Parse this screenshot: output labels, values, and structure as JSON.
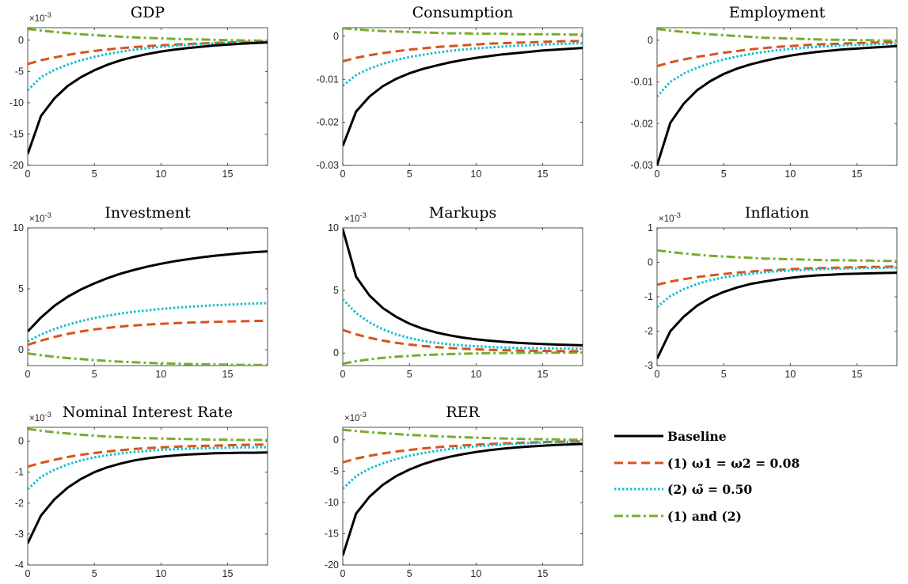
{
  "chart_data": {
    "type": "line",
    "x": [
      0,
      1,
      2,
      3,
      4,
      5,
      6,
      7,
      8,
      9,
      10,
      11,
      12,
      13,
      14,
      15,
      16,
      17,
      18
    ],
    "xlim": [
      0,
      18
    ],
    "xticks": [
      "0",
      "5",
      "10",
      "15"
    ],
    "grid": false,
    "legend": {
      "placement": "bottom-right",
      "entries": [
        {
          "key": "baseline",
          "label": "Baseline",
          "color": "#000000",
          "style": "solid"
        },
        {
          "key": "s1",
          "label": "(1) ω1 = ω2 = 0.08",
          "color": "#d95319",
          "style": "dashed"
        },
        {
          "key": "s2",
          "label": "(2) ω̃ = 0.50",
          "color": "#17becf",
          "style": "dotted"
        },
        {
          "key": "s3",
          "label": "(1) and (2)",
          "color": "#77ac30",
          "style": "dashdot"
        }
      ]
    },
    "panels": [
      {
        "title": "GDP",
        "exponent": "×10^-3",
        "ylim": [
          -20,
          2
        ],
        "yticks": [
          "-20",
          "-15",
          "-10",
          "-5",
          "0"
        ],
        "ytick_values": [
          -20,
          -15,
          -10,
          -5,
          0
        ],
        "series": [
          {
            "key": "baseline",
            "values": [
              -18.2,
              -12.1,
              -9.3,
              -7.3,
              -5.9,
              -4.8,
              -3.9,
              -3.2,
              -2.65,
              -2.2,
              -1.8,
              -1.5,
              -1.25,
              -1.05,
              -0.85,
              -0.7,
              -0.55,
              -0.45,
              -0.35
            ]
          },
          {
            "key": "s1",
            "values": [
              -3.8,
              -3.2,
              -2.75,
              -2.35,
              -2.0,
              -1.72,
              -1.48,
              -1.28,
              -1.1,
              -0.95,
              -0.82,
              -0.7,
              -0.6,
              -0.52,
              -0.44,
              -0.37,
              -0.31,
              -0.26,
              -0.22
            ]
          },
          {
            "key": "s2",
            "values": [
              -8.0,
              -5.9,
              -4.75,
              -3.9,
              -3.2,
              -2.65,
              -2.2,
              -1.83,
              -1.52,
              -1.27,
              -1.06,
              -0.88,
              -0.73,
              -0.61,
              -0.51,
              -0.43,
              -0.36,
              -0.3,
              -0.25
            ]
          },
          {
            "key": "s3",
            "values": [
              1.8,
              1.55,
              1.33,
              1.13,
              0.96,
              0.81,
              0.68,
              0.56,
              0.46,
              0.37,
              0.29,
              0.22,
              0.16,
              0.11,
              0.06,
              0.02,
              -0.02,
              -0.06,
              -0.1
            ]
          }
        ]
      },
      {
        "title": "Consumption",
        "exponent": "",
        "ylim": [
          -0.03,
          0.002
        ],
        "yticks": [
          "-0.03",
          "-0.02",
          "-0.01",
          "0"
        ],
        "ytick_values": [
          -0.03,
          -0.02,
          -0.01,
          0
        ],
        "series": [
          {
            "key": "baseline",
            "values": [
              -0.0255,
              -0.0175,
              -0.014,
              -0.0116,
              -0.0099,
              -0.0086,
              -0.0076,
              -0.0068,
              -0.0061,
              -0.0055,
              -0.005,
              -0.0046,
              -0.0042,
              -0.0039,
              -0.0036,
              -0.0033,
              -0.0031,
              -0.0029,
              -0.0027
            ]
          },
          {
            "key": "s1",
            "values": [
              -0.0058,
              -0.005,
              -0.0044,
              -0.0039,
              -0.0035,
              -0.0031,
              -0.0028,
              -0.0025,
              -0.0023,
              -0.0021,
              -0.0019,
              -0.0017,
              -0.0016,
              -0.0015,
              -0.0014,
              -0.0013,
              -0.0012,
              -0.0011,
              -0.0011
            ]
          },
          {
            "key": "s2",
            "values": [
              -0.0115,
              -0.009,
              -0.0075,
              -0.0064,
              -0.0055,
              -0.0048,
              -0.0043,
              -0.0038,
              -0.0034,
              -0.0031,
              -0.0028,
              -0.0026,
              -0.0024,
              -0.0022,
              -0.0021,
              -0.0019,
              -0.0018,
              -0.0017,
              -0.0016
            ]
          },
          {
            "key": "s3",
            "values": [
              0.0019,
              0.0016,
              0.0014,
              0.0012,
              0.0011,
              0.001,
              0.0009,
              0.0008,
              0.0007,
              0.0007,
              0.0006,
              0.0006,
              0.0006,
              0.0005,
              0.0005,
              0.0005,
              0.0005,
              0.0004,
              0.0004
            ]
          }
        ]
      },
      {
        "title": "Employment",
        "exponent": "",
        "ylim": [
          -0.03,
          0.003
        ],
        "yticks": [
          "-0.03",
          "-0.02",
          "-0.01",
          "0"
        ],
        "ytick_values": [
          -0.03,
          -0.02,
          -0.01,
          0
        ],
        "series": [
          {
            "key": "baseline",
            "values": [
              -0.03,
              -0.0198,
              -0.0152,
              -0.012,
              -0.0098,
              -0.0081,
              -0.0068,
              -0.0058,
              -0.005,
              -0.0043,
              -0.0037,
              -0.0032,
              -0.0028,
              -0.0025,
              -0.0022,
              -0.002,
              -0.0018,
              -0.0016,
              -0.0014
            ]
          },
          {
            "key": "s1",
            "values": [
              -0.0062,
              -0.0053,
              -0.0046,
              -0.004,
              -0.0035,
              -0.003,
              -0.0026,
              -0.0022,
              -0.0019,
              -0.0016,
              -0.0014,
              -0.0012,
              -0.001,
              -0.0009,
              -0.0008,
              -0.0007,
              -0.0006,
              -0.0005,
              -0.0005
            ]
          },
          {
            "key": "s2",
            "values": [
              -0.0135,
              -0.01,
              -0.008,
              -0.0066,
              -0.0055,
              -0.0046,
              -0.0039,
              -0.0033,
              -0.0028,
              -0.0024,
              -0.0021,
              -0.0018,
              -0.0016,
              -0.0014,
              -0.0012,
              -0.0011,
              -0.001,
              -0.0009,
              -0.0008
            ]
          },
          {
            "key": "s3",
            "values": [
              0.0027,
              0.0023,
              0.002,
              0.0017,
              0.0014,
              0.0012,
              0.001,
              0.0008,
              0.0006,
              0.0005,
              0.0004,
              0.0003,
              0.0002,
              0.0001,
              0.0001,
              0.0,
              0.0,
              -0.0001,
              -0.0001
            ]
          }
        ]
      },
      {
        "title": "Investment",
        "exponent": "×10^-3",
        "ylim": [
          -1.3,
          10
        ],
        "yticks": [
          "0",
          "5",
          "10"
        ],
        "ytick_values": [
          0,
          5,
          10
        ],
        "series": [
          {
            "key": "baseline",
            "values": [
              1.5,
              2.65,
              3.6,
              4.35,
              4.95,
              5.45,
              5.88,
              6.25,
              6.56,
              6.83,
              7.06,
              7.26,
              7.43,
              7.58,
              7.71,
              7.82,
              7.92,
              8.01,
              8.08
            ]
          },
          {
            "key": "s1",
            "values": [
              0.4,
              0.75,
              1.05,
              1.3,
              1.5,
              1.67,
              1.8,
              1.91,
              2.0,
              2.07,
              2.13,
              2.18,
              2.22,
              2.26,
              2.29,
              2.32,
              2.34,
              2.36,
              2.38
            ]
          },
          {
            "key": "s2",
            "values": [
              0.7,
              1.25,
              1.7,
              2.05,
              2.35,
              2.6,
              2.8,
              2.97,
              3.12,
              3.24,
              3.35,
              3.44,
              3.52,
              3.59,
              3.65,
              3.7,
              3.75,
              3.79,
              3.83
            ]
          },
          {
            "key": "s3",
            "values": [
              -0.3,
              -0.45,
              -0.58,
              -0.68,
              -0.77,
              -0.85,
              -0.92,
              -0.98,
              -1.03,
              -1.07,
              -1.11,
              -1.14,
              -1.17,
              -1.19,
              -1.21,
              -1.23,
              -1.24,
              -1.25,
              -1.26
            ]
          }
        ]
      },
      {
        "title": "Markups",
        "exponent": "×10^-3",
        "ylim": [
          -1,
          10
        ],
        "yticks": [
          "0",
          "5",
          "10"
        ],
        "ytick_values": [
          0,
          5,
          10
        ],
        "series": [
          {
            "key": "baseline",
            "values": [
              9.9,
              6.1,
              4.6,
              3.6,
              2.9,
              2.35,
              1.95,
              1.65,
              1.42,
              1.24,
              1.1,
              0.99,
              0.9,
              0.83,
              0.77,
              0.72,
              0.68,
              0.65,
              0.62
            ]
          },
          {
            "key": "s1",
            "values": [
              1.85,
              1.5,
              1.22,
              1.0,
              0.82,
              0.68,
              0.57,
              0.48,
              0.41,
              0.35,
              0.3,
              0.26,
              0.23,
              0.21,
              0.19,
              0.17,
              0.16,
              0.15,
              0.14
            ]
          },
          {
            "key": "s2",
            "values": [
              4.3,
              3.2,
              2.45,
              1.9,
              1.5,
              1.2,
              0.98,
              0.82,
              0.7,
              0.61,
              0.54,
              0.49,
              0.45,
              0.42,
              0.4,
              0.38,
              0.37,
              0.36,
              0.35
            ]
          },
          {
            "key": "s3",
            "values": [
              -0.85,
              -0.65,
              -0.5,
              -0.38,
              -0.29,
              -0.22,
              -0.16,
              -0.12,
              -0.08,
              -0.05,
              -0.03,
              -0.01,
              0.0,
              0.01,
              0.02,
              0.03,
              0.03,
              0.04,
              0.04
            ]
          }
        ]
      },
      {
        "title": "Inflation",
        "exponent": "×10^-3",
        "ylim": [
          -3,
          1
        ],
        "yticks": [
          "-3",
          "-2",
          "-1",
          "0",
          "1"
        ],
        "ytick_values": [
          -3,
          -2,
          -1,
          0,
          1
        ],
        "series": [
          {
            "key": "baseline",
            "values": [
              -2.8,
              -2.0,
              -1.58,
              -1.26,
              -1.03,
              -0.86,
              -0.73,
              -0.63,
              -0.56,
              -0.5,
              -0.45,
              -0.41,
              -0.38,
              -0.36,
              -0.34,
              -0.33,
              -0.32,
              -0.31,
              -0.3
            ]
          },
          {
            "key": "s1",
            "values": [
              -0.65,
              -0.56,
              -0.49,
              -0.43,
              -0.38,
              -0.34,
              -0.3,
              -0.27,
              -0.24,
              -0.22,
              -0.2,
              -0.18,
              -0.17,
              -0.16,
              -0.15,
              -0.14,
              -0.13,
              -0.13,
              -0.12
            ]
          },
          {
            "key": "s2",
            "values": [
              -1.3,
              -0.98,
              -0.78,
              -0.63,
              -0.52,
              -0.44,
              -0.38,
              -0.33,
              -0.29,
              -0.26,
              -0.24,
              -0.22,
              -0.2,
              -0.19,
              -0.18,
              -0.17,
              -0.16,
              -0.16,
              -0.15
            ]
          },
          {
            "key": "s3",
            "values": [
              0.35,
              0.3,
              0.26,
              0.22,
              0.19,
              0.17,
              0.15,
              0.13,
              0.11,
              0.1,
              0.09,
              0.08,
              0.07,
              0.06,
              0.06,
              0.05,
              0.05,
              0.04,
              0.04
            ]
          }
        ]
      },
      {
        "title": "Nominal Interest Rate",
        "exponent": "×10^-3",
        "ylim": [
          -4,
          0.45
        ],
        "yticks": [
          "-4",
          "-3",
          "-2",
          "-1",
          "0"
        ],
        "ytick_values": [
          -4,
          -3,
          -2,
          -1,
          0
        ],
        "series": [
          {
            "key": "baseline",
            "values": [
              -3.3,
              -2.4,
              -1.88,
              -1.5,
              -1.22,
              -1.0,
              -0.84,
              -0.72,
              -0.62,
              -0.55,
              -0.5,
              -0.46,
              -0.43,
              -0.41,
              -0.39,
              -0.38,
              -0.37,
              -0.37,
              -0.36
            ]
          },
          {
            "key": "s1",
            "values": [
              -0.82,
              -0.7,
              -0.6,
              -0.51,
              -0.44,
              -0.38,
              -0.33,
              -0.29,
              -0.25,
              -0.22,
              -0.2,
              -0.18,
              -0.16,
              -0.15,
              -0.14,
              -0.13,
              -0.12,
              -0.11,
              -0.11
            ]
          },
          {
            "key": "s2",
            "values": [
              -1.55,
              -1.15,
              -0.92,
              -0.75,
              -0.62,
              -0.52,
              -0.45,
              -0.39,
              -0.35,
              -0.31,
              -0.28,
              -0.26,
              -0.24,
              -0.23,
              -0.22,
              -0.21,
              -0.2,
              -0.2,
              -0.19
            ]
          },
          {
            "key": "s3",
            "values": [
              0.4,
              0.34,
              0.29,
              0.25,
              0.21,
              0.18,
              0.15,
              0.13,
              0.11,
              0.1,
              0.09,
              0.08,
              0.07,
              0.06,
              0.05,
              0.05,
              0.04,
              0.04,
              0.04
            ]
          }
        ]
      },
      {
        "title": "RER",
        "exponent": "×10^-3",
        "ylim": [
          -20,
          2
        ],
        "yticks": [
          "-20",
          "-15",
          "-10",
          "-5",
          "0"
        ],
        "ytick_values": [
          -20,
          -15,
          -10,
          -5,
          0
        ],
        "series": [
          {
            "key": "baseline",
            "values": [
              -18.5,
              -11.8,
              -9.1,
              -7.2,
              -5.8,
              -4.75,
              -3.9,
              -3.25,
              -2.72,
              -2.3,
              -1.95,
              -1.66,
              -1.42,
              -1.22,
              -1.06,
              -0.93,
              -0.82,
              -0.73,
              -0.65
            ]
          },
          {
            "key": "s1",
            "values": [
              -3.6,
              -3.0,
              -2.55,
              -2.18,
              -1.87,
              -1.61,
              -1.39,
              -1.2,
              -1.04,
              -0.9,
              -0.78,
              -0.67,
              -0.58,
              -0.5,
              -0.43,
              -0.37,
              -0.32,
              -0.27,
              -0.23
            ]
          },
          {
            "key": "s2",
            "values": [
              -7.8,
              -5.8,
              -4.6,
              -3.75,
              -3.08,
              -2.55,
              -2.12,
              -1.77,
              -1.48,
              -1.24,
              -1.04,
              -0.88,
              -0.74,
              -0.62,
              -0.52,
              -0.44,
              -0.37,
              -0.31,
              -0.26
            ]
          },
          {
            "key": "s3",
            "values": [
              1.6,
              1.4,
              1.22,
              1.06,
              0.92,
              0.79,
              0.68,
              0.58,
              0.49,
              0.41,
              0.34,
              0.28,
              0.22,
              0.17,
              0.13,
              0.09,
              0.06,
              0.03,
              0.0
            ]
          }
        ]
      }
    ]
  }
}
